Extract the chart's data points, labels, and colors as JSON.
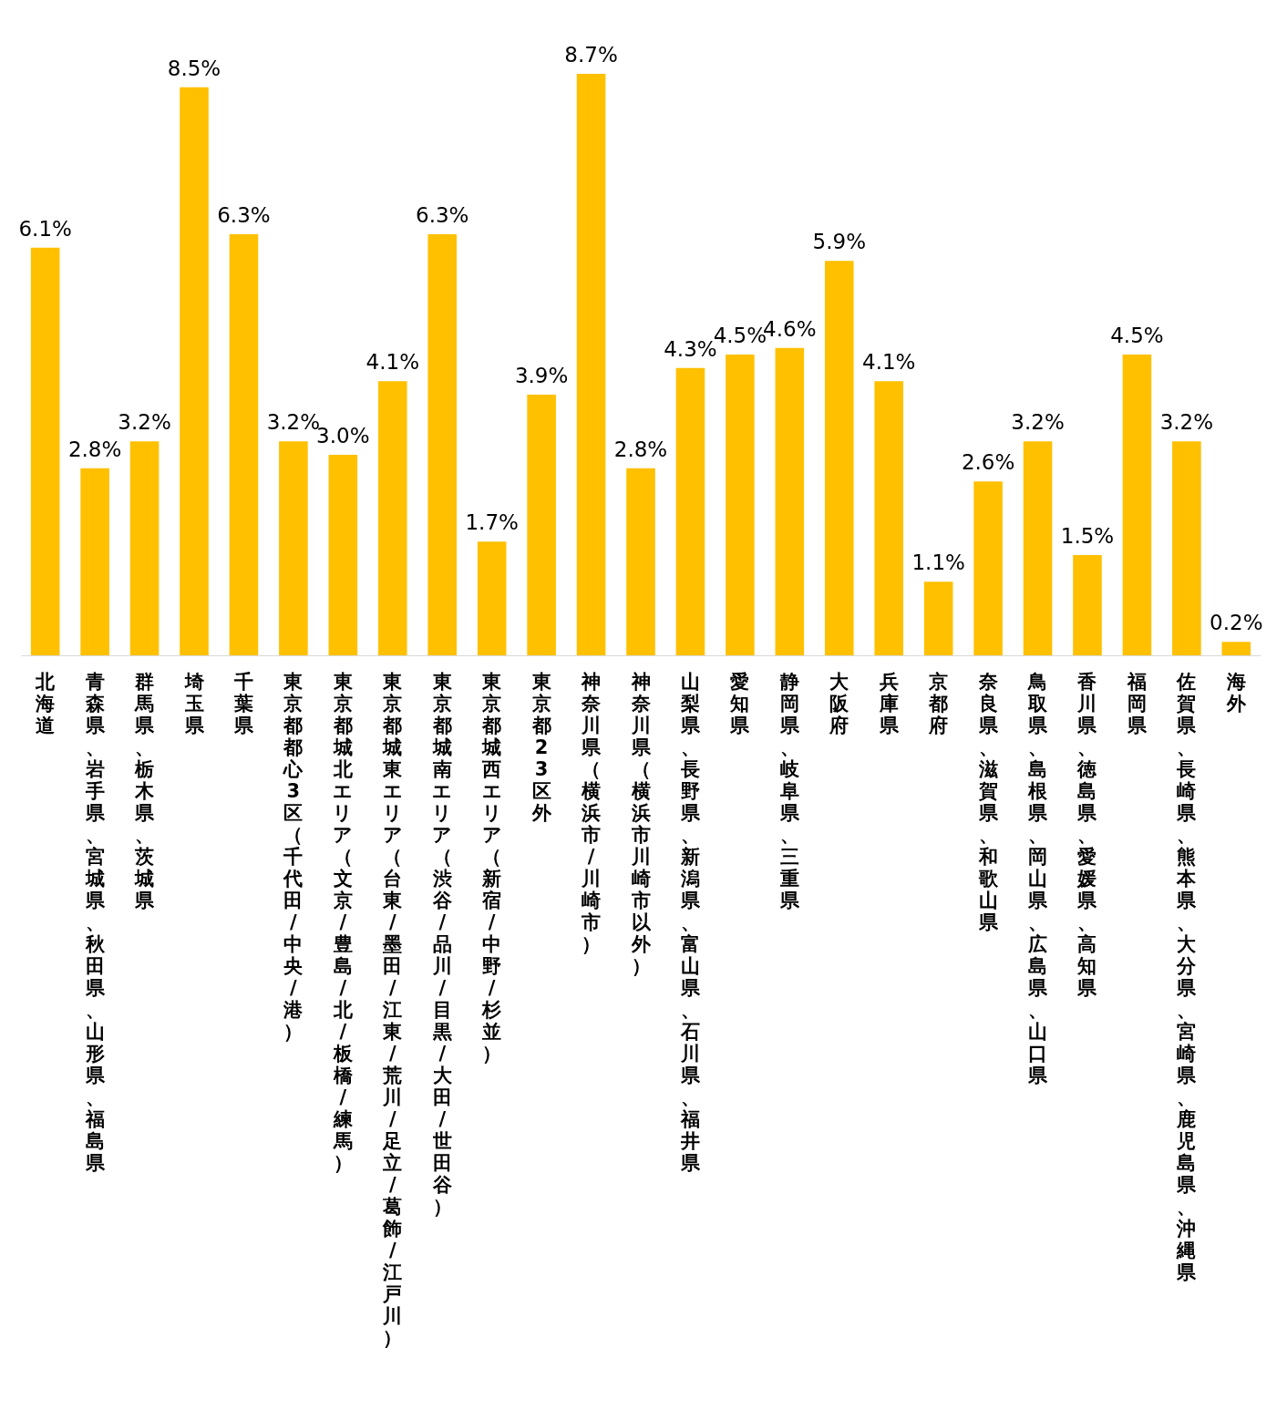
{
  "chart_data": {
    "type": "bar",
    "color": "#ffc000",
    "categories": [
      "北海道",
      "青森県、岩手県、宮城県、秋田県、山形県、福島県",
      "群馬県、栃木県、茨城県",
      "埼玉県",
      "千葉県",
      "東京都都心3区（千代田/中央/港）",
      "東京都城北エリア（文京/豊島/北/板橋/練馬）",
      "東京都城東エリア（台東/墨田/江東/荒川/足立/葛飾/江戸川）",
      "東京都城南エリア（渋谷/品川/目黒/大田/世田谷）",
      "東京都城西エリア（新宿/中野/杉並）",
      "東京都23区外",
      "神奈川県（横浜市/川崎市）",
      "神奈川県（横浜市川崎市以外）",
      "山梨県、長野県、新潟県、富山県、石川県、福井県",
      "愛知県",
      "静岡県、岐阜県、三重県",
      "大阪府",
      "兵庫県",
      "京都府",
      "奈良県、滋賀県、和歌山県",
      "鳥取県、島根県、岡山県、広島県、山口県",
      "香川県、徳島県、愛媛県、高知県",
      "福岡県",
      "佐賀県、長崎県、熊本県、大分県、宮崎県、鹿児島県、沖縄県",
      "海外"
    ],
    "values": [
      6.1,
      2.8,
      3.2,
      8.5,
      6.3,
      3.2,
      3.0,
      4.1,
      6.3,
      1.7,
      3.9,
      8.7,
      2.8,
      4.3,
      4.5,
      4.6,
      5.9,
      4.1,
      1.1,
      2.6,
      3.2,
      1.5,
      4.5,
      3.2,
      0.2
    ],
    "value_labels": [
      "6.1%",
      "2.8%",
      "3.2%",
      "8.5%",
      "6.3%",
      "3.2%",
      "3.0%",
      "4.1%",
      "6.3%",
      "1.7%",
      "3.9%",
      "8.7%",
      "2.8%",
      "4.3%",
      "4.5%",
      "4.6%",
      "5.9%",
      "4.1%",
      "1.1%",
      "2.6%",
      "3.2%",
      "1.5%",
      "4.5%",
      "3.2%",
      "0.2%"
    ],
    "tick_labels": "x",
    "grid": false
  }
}
